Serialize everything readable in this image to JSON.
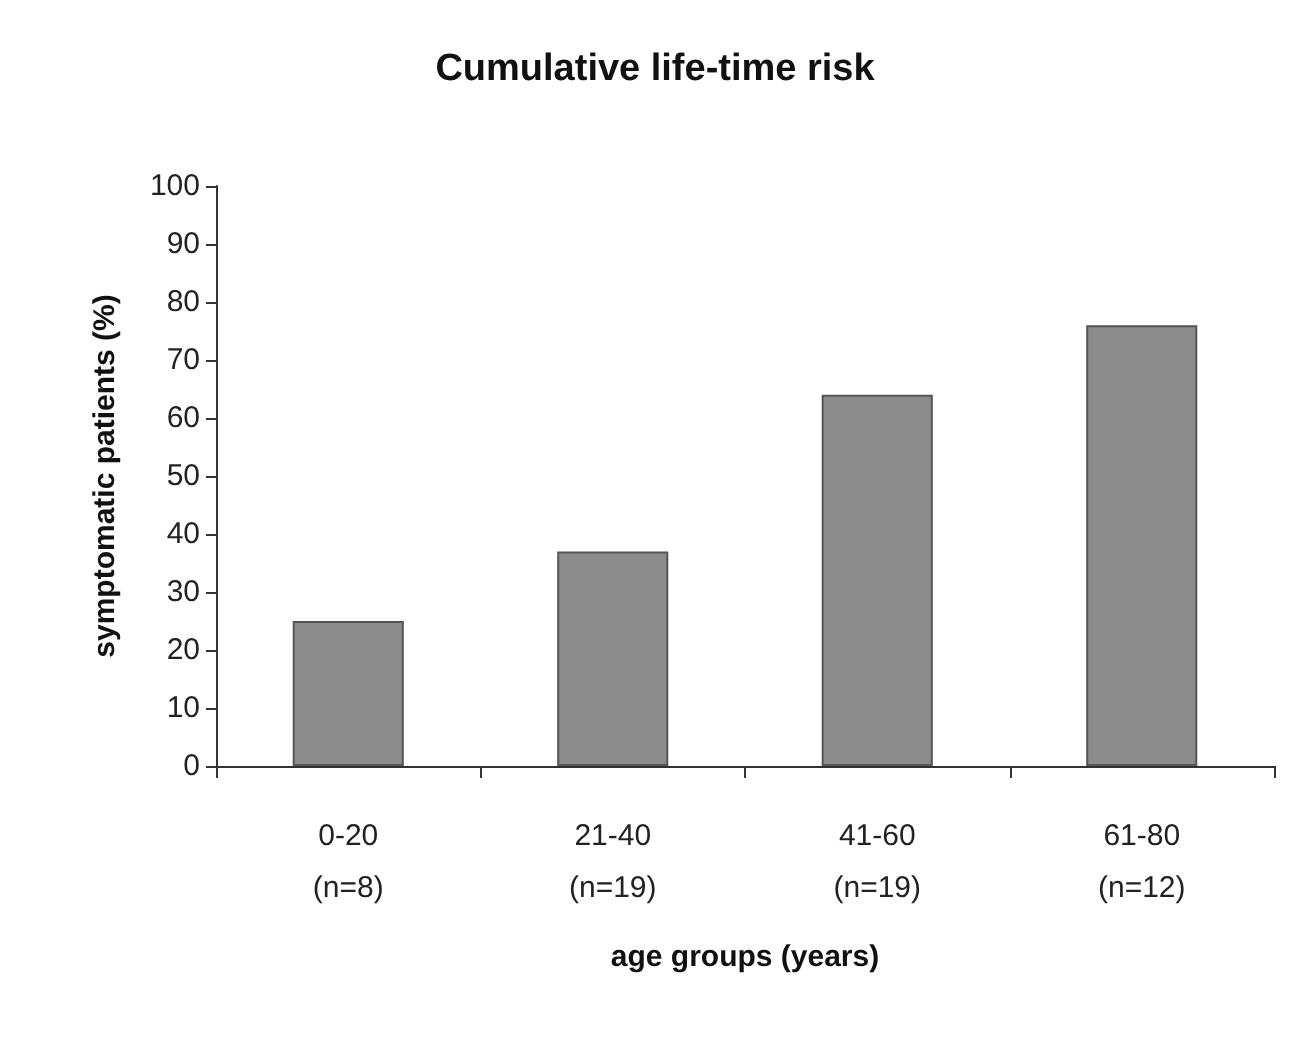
{
  "chart_data": {
    "type": "bar",
    "title": "Cumulative life-time risk",
    "xlabel": "age groups (years)",
    "ylabel": "symptomatic patients (%)",
    "categories": [
      "0-20\n(n=8)",
      "21-40\n(n=19)",
      "41-60\n(n=19)",
      "61-80\n(n=12)"
    ],
    "values": [
      25,
      37,
      64,
      76
    ],
    "color": "#8c8c8c",
    "ylim": [
      0,
      100
    ],
    "yticks": [
      0,
      10,
      20,
      30,
      40,
      50,
      60,
      70,
      80,
      90,
      100
    ],
    "grid": false
  }
}
